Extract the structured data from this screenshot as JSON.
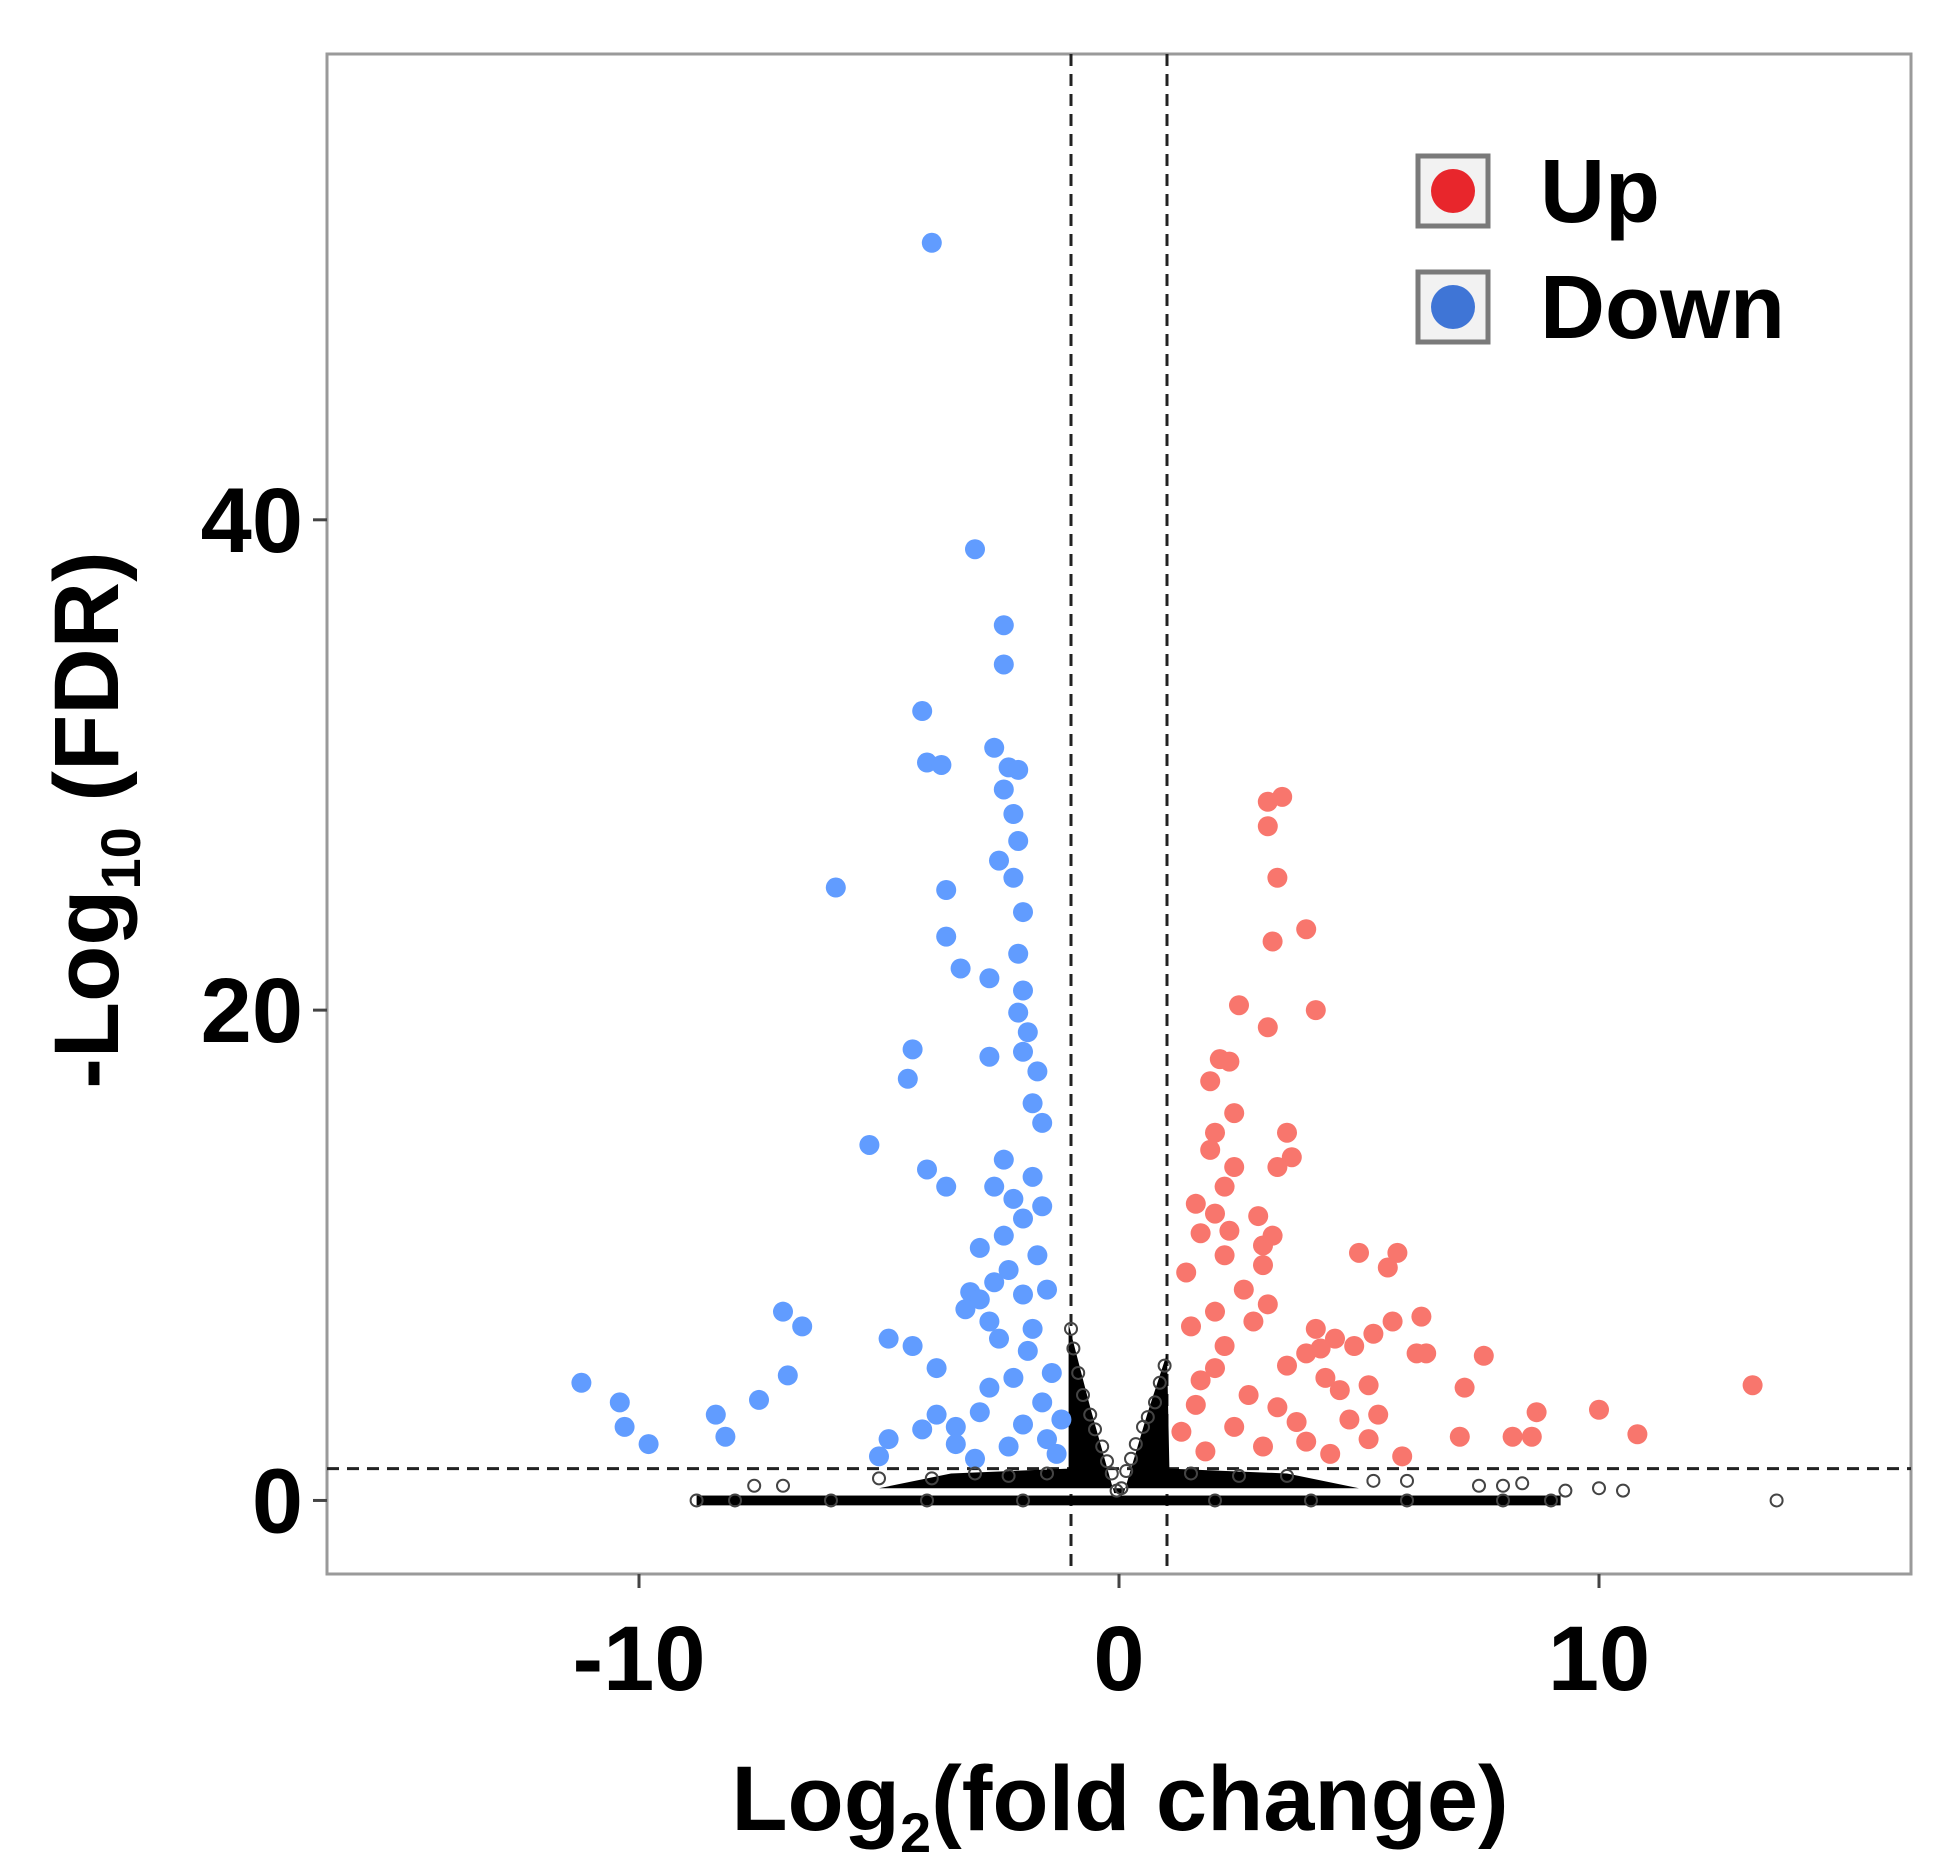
{
  "chart_data": {
    "type": "scatter",
    "title": "",
    "xlabel": {
      "main": "Log",
      "sub": "2",
      "rest": "(fold change)"
    },
    "ylabel": {
      "main": "-Log",
      "sub": "10",
      "rest": " (FDR)"
    },
    "xlim": [
      -16.5,
      16.5
    ],
    "ylim": [
      -3,
      59
    ],
    "xticks": [
      -10,
      0,
      10
    ],
    "xtick_labels": [
      "-10",
      "0",
      "10"
    ],
    "yticks": [
      0,
      20,
      40
    ],
    "ytick_labels": [
      "0",
      "20",
      "40"
    ],
    "grid": false,
    "thresholds": {
      "x": [
        -1,
        1
      ],
      "y": 1.3
    },
    "legend": {
      "position": "top-right",
      "items": [
        {
          "label": "Up",
          "color": "#e8262c"
        },
        {
          "label": "Down",
          "color": "#3f75d6"
        }
      ]
    },
    "series": [
      {
        "name": "Up",
        "color": "#f8766d",
        "points": [
          [
            3.1,
            28.5
          ],
          [
            3.4,
            28.7
          ],
          [
            3.1,
            27.5
          ],
          [
            3.3,
            25.4
          ],
          [
            3.9,
            23.3
          ],
          [
            3.2,
            22.8
          ],
          [
            2.5,
            20.2
          ],
          [
            4.1,
            20.0
          ],
          [
            3.1,
            19.3
          ],
          [
            2.1,
            18.0
          ],
          [
            2.3,
            17.9
          ],
          [
            1.9,
            17.1
          ],
          [
            2.4,
            15.8
          ],
          [
            2.0,
            15.0
          ],
          [
            3.5,
            15.0
          ],
          [
            1.9,
            14.3
          ],
          [
            3.6,
            14.0
          ],
          [
            3.3,
            13.6
          ],
          [
            2.4,
            13.6
          ],
          [
            2.2,
            12.8
          ],
          [
            1.6,
            12.1
          ],
          [
            2.0,
            11.7
          ],
          [
            2.9,
            11.6
          ],
          [
            2.3,
            11.0
          ],
          [
            1.7,
            10.9
          ],
          [
            3.0,
            10.4
          ],
          [
            3.2,
            10.8
          ],
          [
            2.2,
            10.0
          ],
          [
            3.0,
            9.6
          ],
          [
            5.0,
            10.1
          ],
          [
            5.8,
            10.1
          ],
          [
            5.6,
            9.5
          ],
          [
            1.4,
            9.3
          ],
          [
            2.6,
            8.6
          ],
          [
            3.1,
            8.0
          ],
          [
            2.0,
            7.7
          ],
          [
            2.8,
            7.3
          ],
          [
            1.5,
            7.1
          ],
          [
            6.3,
            7.5
          ],
          [
            5.7,
            7.3
          ],
          [
            5.3,
            6.8
          ],
          [
            4.1,
            7.0
          ],
          [
            4.5,
            6.6
          ],
          [
            4.2,
            6.2
          ],
          [
            4.9,
            6.3
          ],
          [
            3.9,
            6.0
          ],
          [
            6.2,
            6.0
          ],
          [
            6.4,
            6.0
          ],
          [
            7.6,
            5.9
          ],
          [
            3.5,
            5.5
          ],
          [
            4.3,
            5.0
          ],
          [
            5.2,
            4.7
          ],
          [
            7.2,
            4.6
          ],
          [
            4.6,
            4.5
          ],
          [
            8.7,
            3.6
          ],
          [
            10.0,
            3.7
          ],
          [
            13.2,
            4.7
          ],
          [
            5.4,
            3.5
          ],
          [
            4.8,
            3.3
          ],
          [
            3.7,
            3.2
          ],
          [
            8.2,
            2.6
          ],
          [
            8.6,
            2.6
          ],
          [
            10.8,
            2.7
          ],
          [
            7.1,
            2.6
          ],
          [
            5.2,
            2.5
          ],
          [
            5.9,
            1.8
          ],
          [
            2.0,
            5.4
          ],
          [
            2.7,
            4.3
          ],
          [
            1.6,
            3.9
          ],
          [
            2.4,
            3.0
          ],
          [
            3.0,
            2.2
          ],
          [
            3.9,
            2.4
          ],
          [
            1.3,
            2.8
          ],
          [
            1.8,
            2.0
          ],
          [
            4.4,
            1.9
          ],
          [
            2.2,
            6.3
          ],
          [
            1.7,
            4.9
          ],
          [
            3.3,
            3.8
          ]
        ]
      },
      {
        "name": "Down",
        "color": "#619cff",
        "points": [
          [
            -3.9,
            51.3
          ],
          [
            -3.0,
            38.8
          ],
          [
            -2.4,
            35.7
          ],
          [
            -2.4,
            34.1
          ],
          [
            -4.1,
            32.2
          ],
          [
            -4.0,
            30.1
          ],
          [
            -3.7,
            30.0
          ],
          [
            -2.6,
            30.7
          ],
          [
            -2.3,
            29.9
          ],
          [
            -2.1,
            29.8
          ],
          [
            -2.4,
            29.0
          ],
          [
            -2.2,
            28.0
          ],
          [
            -2.1,
            26.9
          ],
          [
            -2.5,
            26.1
          ],
          [
            -2.2,
            25.4
          ],
          [
            -5.9,
            25.0
          ],
          [
            -3.6,
            24.9
          ],
          [
            -2.0,
            24.0
          ],
          [
            -3.6,
            23.0
          ],
          [
            -2.1,
            22.3
          ],
          [
            -3.3,
            21.7
          ],
          [
            -2.7,
            21.3
          ],
          [
            -2.0,
            20.8
          ],
          [
            -2.1,
            19.9
          ],
          [
            -1.9,
            19.1
          ],
          [
            -4.3,
            18.4
          ],
          [
            -4.4,
            17.2
          ],
          [
            -2.7,
            18.1
          ],
          [
            -2.0,
            18.3
          ],
          [
            -1.7,
            17.5
          ],
          [
            -1.8,
            16.2
          ],
          [
            -1.6,
            15.4
          ],
          [
            -5.2,
            14.5
          ],
          [
            -4.0,
            13.5
          ],
          [
            -3.6,
            12.8
          ],
          [
            -2.4,
            13.9
          ],
          [
            -2.6,
            12.8
          ],
          [
            -2.2,
            12.3
          ],
          [
            -1.8,
            13.2
          ],
          [
            -1.6,
            12.0
          ],
          [
            -2.0,
            11.5
          ],
          [
            -2.4,
            10.8
          ],
          [
            -2.9,
            10.3
          ],
          [
            -1.7,
            10.0
          ],
          [
            -2.3,
            9.4
          ],
          [
            -2.6,
            8.9
          ],
          [
            -3.1,
            8.5
          ],
          [
            -2.9,
            8.2
          ],
          [
            -2.0,
            8.4
          ],
          [
            -1.5,
            8.6
          ],
          [
            -3.2,
            7.8
          ],
          [
            -2.7,
            7.3
          ],
          [
            -1.8,
            7.0
          ],
          [
            -7.0,
            7.7
          ],
          [
            -6.6,
            7.1
          ],
          [
            -4.8,
            6.6
          ],
          [
            -4.3,
            6.3
          ],
          [
            -2.5,
            6.6
          ],
          [
            -6.9,
            5.1
          ],
          [
            -3.8,
            5.4
          ],
          [
            -2.7,
            4.6
          ],
          [
            -11.2,
            4.8
          ],
          [
            -10.4,
            4.0
          ],
          [
            -8.4,
            3.5
          ],
          [
            -7.5,
            4.1
          ],
          [
            -10.3,
            3.0
          ],
          [
            -9.8,
            2.3
          ],
          [
            -8.2,
            2.6
          ],
          [
            -5.0,
            1.8
          ],
          [
            -4.8,
            2.5
          ],
          [
            -4.1,
            2.9
          ],
          [
            -3.8,
            3.5
          ],
          [
            -3.4,
            3.0
          ],
          [
            -2.9,
            3.6
          ],
          [
            -3.4,
            2.3
          ],
          [
            -2.3,
            2.2
          ],
          [
            -2.0,
            3.1
          ],
          [
            -1.6,
            4.0
          ],
          [
            -1.4,
            5.2
          ],
          [
            -1.5,
            2.5
          ],
          [
            -2.2,
            5.0
          ],
          [
            -1.9,
            6.1
          ],
          [
            -1.3,
            1.9
          ],
          [
            -1.2,
            3.3
          ],
          [
            -3.0,
            1.7
          ]
        ]
      },
      {
        "name": "",
        "color": "#000000",
        "points": [
          [
            -0.05,
            0.4
          ],
          [
            0.05,
            0.5
          ],
          [
            -0.15,
            1.1
          ],
          [
            0.15,
            1.2
          ],
          [
            -0.25,
            1.6
          ],
          [
            0.25,
            1.7
          ],
          [
            -0.35,
            2.2
          ],
          [
            0.35,
            2.3
          ],
          [
            -0.5,
            2.9
          ],
          [
            0.5,
            3.0
          ],
          [
            -0.6,
            3.5
          ],
          [
            0.6,
            3.4
          ],
          [
            -0.75,
            4.3
          ],
          [
            0.75,
            4.0
          ],
          [
            -0.85,
            5.2
          ],
          [
            0.85,
            4.8
          ],
          [
            -0.95,
            6.2
          ],
          [
            0.95,
            5.5
          ],
          [
            -1.0,
            7.0
          ],
          [
            -7.6,
            0.6
          ],
          [
            -7.0,
            0.6
          ],
          [
            -5.0,
            0.9
          ],
          [
            -3.9,
            0.9
          ],
          [
            -3.0,
            1.1
          ],
          [
            -2.3,
            1.0
          ],
          [
            -1.5,
            1.1
          ],
          [
            1.5,
            1.1
          ],
          [
            2.5,
            1.0
          ],
          [
            3.5,
            1.0
          ],
          [
            5.3,
            0.8
          ],
          [
            6.0,
            0.8
          ],
          [
            7.5,
            0.6
          ],
          [
            8.0,
            0.6
          ],
          [
            8.4,
            0.7
          ],
          [
            9.3,
            0.4
          ],
          [
            10.0,
            0.5
          ],
          [
            10.5,
            0.4
          ],
          [
            13.7,
            0.0
          ],
          [
            -8.8,
            0.0
          ],
          [
            -8.0,
            0.0
          ],
          [
            -6.0,
            0.0
          ],
          [
            -4.0,
            0.0
          ],
          [
            -2.0,
            0.0
          ],
          [
            2.0,
            0.0
          ],
          [
            4.0,
            0.0
          ],
          [
            6.0,
            0.0
          ],
          [
            8.0,
            0.0
          ],
          [
            9.0,
            0.0
          ]
        ]
      }
    ]
  }
}
